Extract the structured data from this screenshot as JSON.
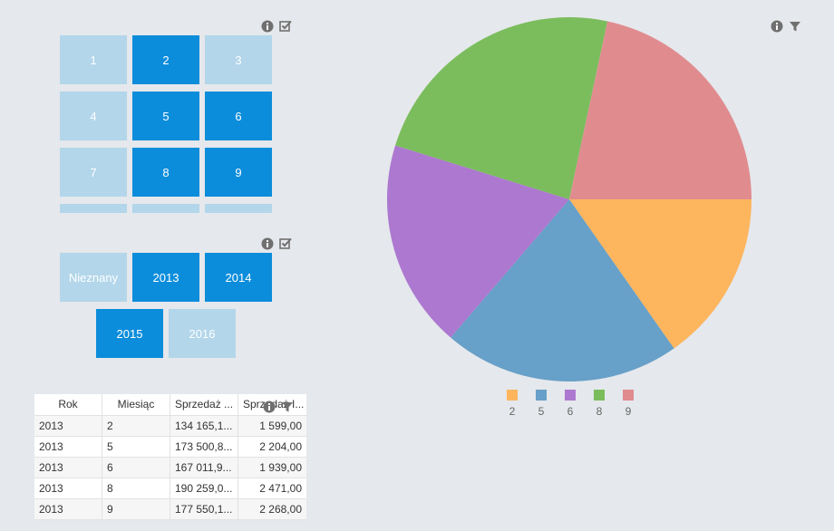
{
  "month_filter": {
    "tiles": [
      {
        "label": "1",
        "selected": false
      },
      {
        "label": "2",
        "selected": true
      },
      {
        "label": "3",
        "selected": false
      },
      {
        "label": "4",
        "selected": false
      },
      {
        "label": "5",
        "selected": true
      },
      {
        "label": "6",
        "selected": true
      },
      {
        "label": "7",
        "selected": false
      },
      {
        "label": "8",
        "selected": true
      },
      {
        "label": "9",
        "selected": true
      }
    ]
  },
  "year_filter": {
    "tiles": [
      {
        "label": "Nieznany",
        "selected": false
      },
      {
        "label": "2013",
        "selected": true
      },
      {
        "label": "2014",
        "selected": true
      },
      {
        "label": "2015",
        "selected": true
      },
      {
        "label": "2016",
        "selected": false
      }
    ]
  },
  "table": {
    "headers": [
      "Rok",
      "Miesiąc",
      "Sprzedaż ...",
      "Sprzedaż I..."
    ],
    "rows": [
      [
        "2013",
        "2",
        "134 165,1...",
        "1 599,00"
      ],
      [
        "2013",
        "5",
        "173 500,8...",
        "2 204,00"
      ],
      [
        "2013",
        "6",
        "167 011,9...",
        "1 939,00"
      ],
      [
        "2013",
        "8",
        "190 259,0...",
        "2 471,00"
      ],
      [
        "2013",
        "9",
        "177 550,1...",
        "2 268,00"
      ]
    ]
  },
  "colors": {
    "selected_tile": "#0c8ddb",
    "unselected_tile": "#b3d6ea",
    "icon": "#707070",
    "background": "#e5e8ec"
  },
  "icons": [
    "info-icon",
    "selection-check-icon",
    "filter-icon"
  ],
  "chart_data": {
    "type": "pie",
    "categories": [
      "2",
      "5",
      "6",
      "8",
      "9"
    ],
    "values": [
      1599,
      2204,
      1939,
      2471,
      2268
    ],
    "colors": [
      "#fdb55e",
      "#67a0c8",
      "#ad78d0",
      "#7bbd5d",
      "#e08c8f"
    ],
    "legend": "bottom"
  }
}
